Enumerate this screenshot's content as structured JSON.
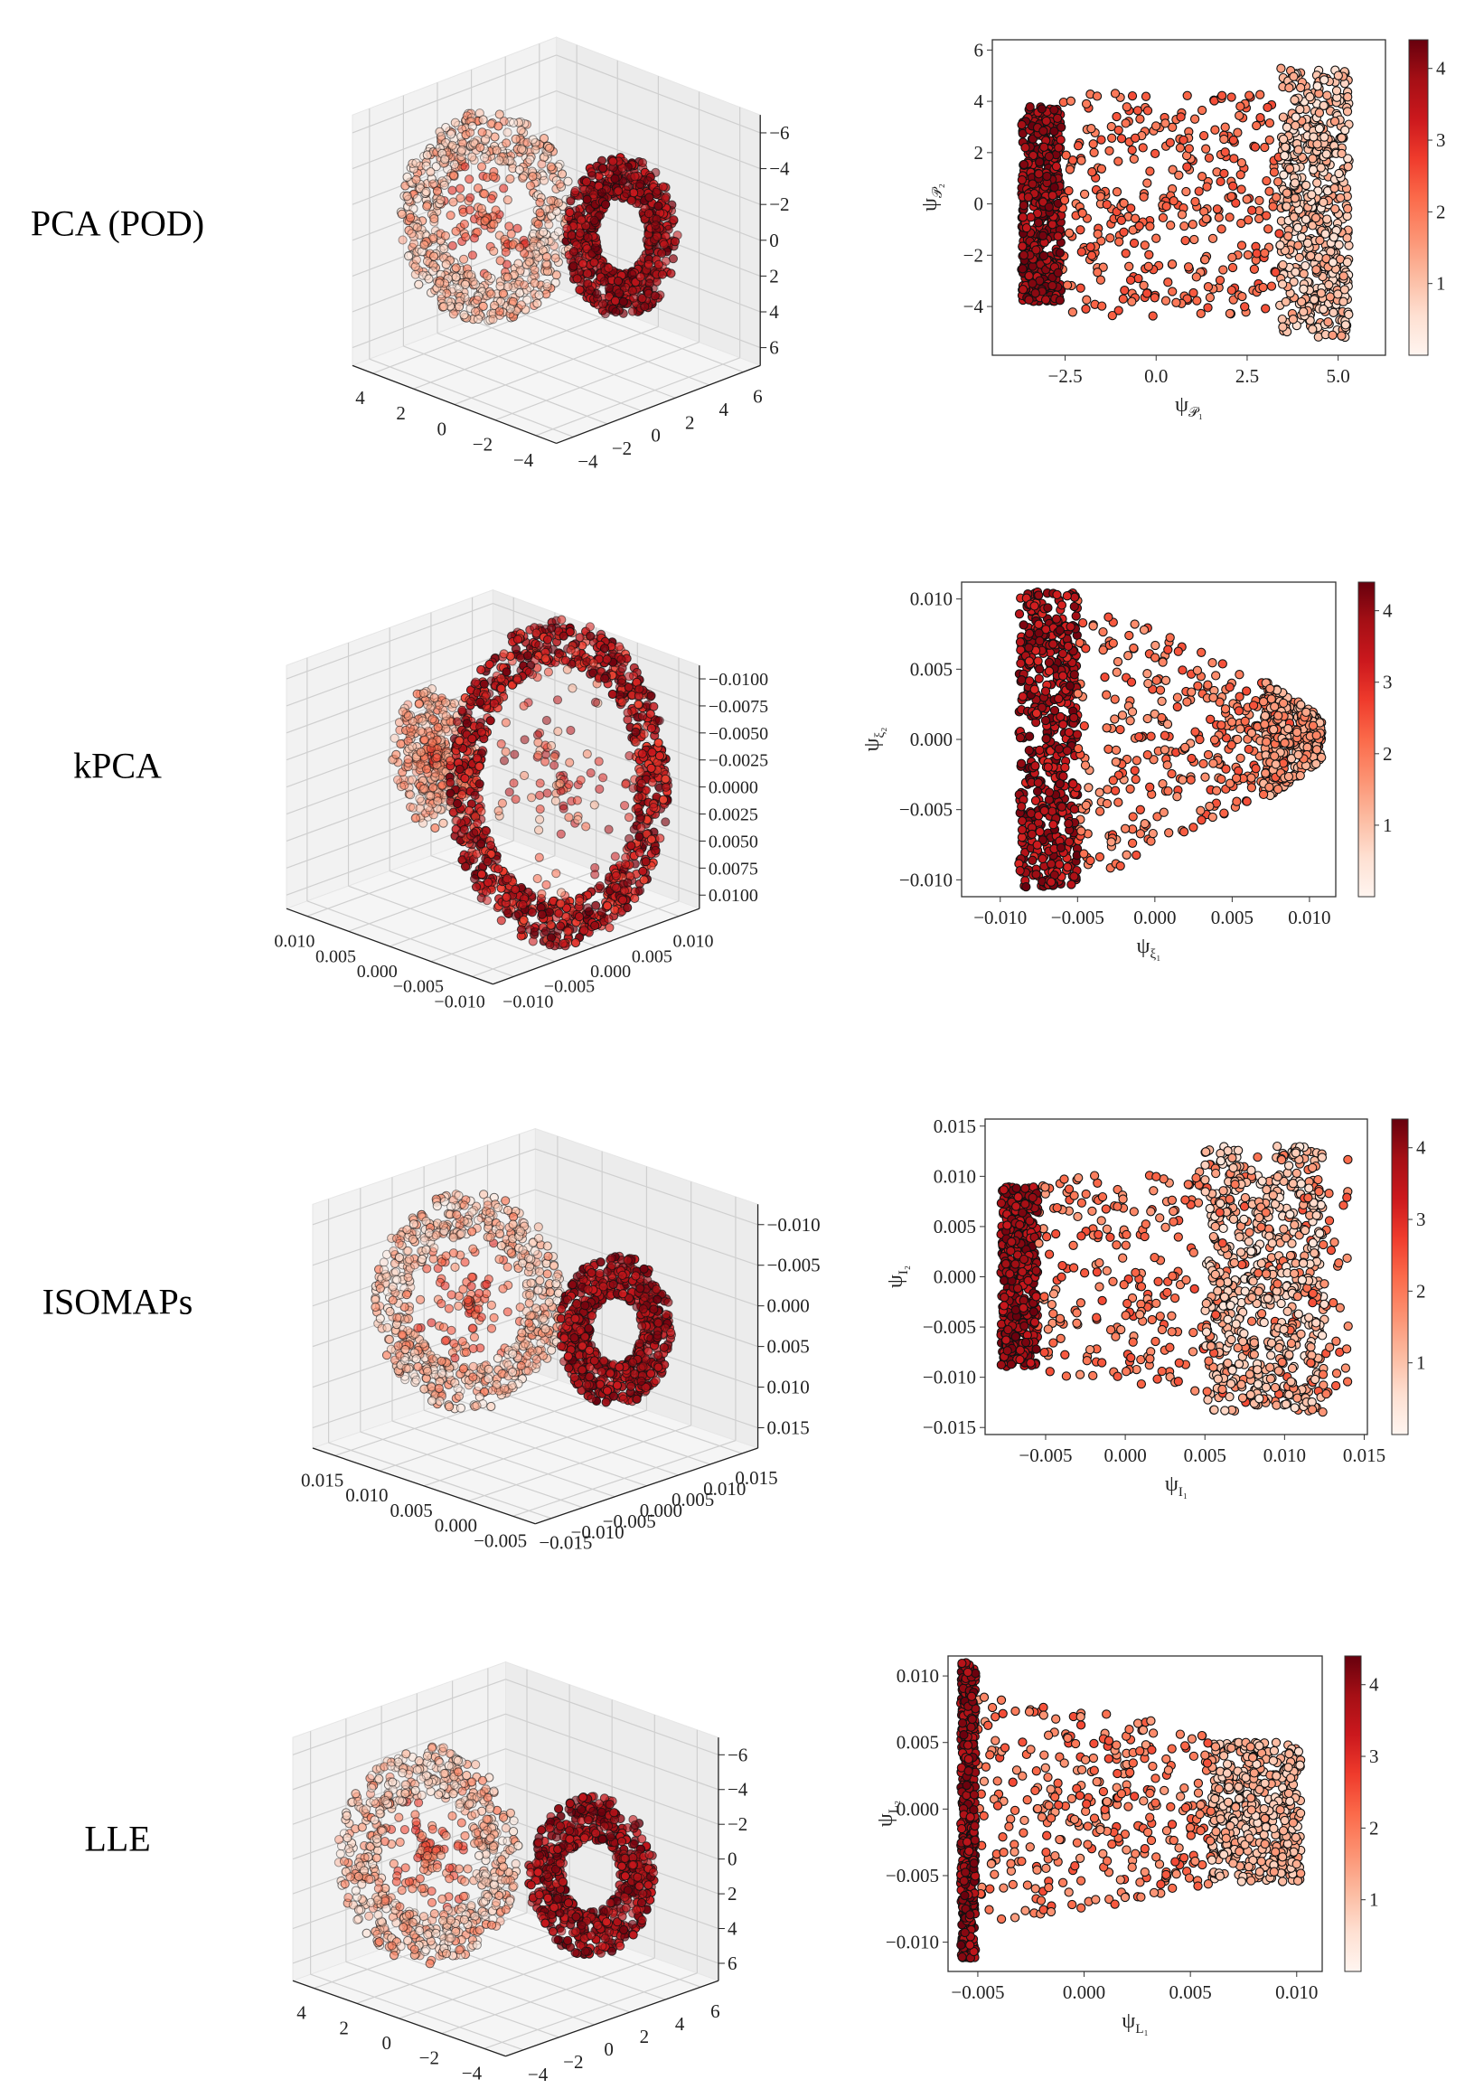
{
  "rows": [
    {
      "label": "PCA (POD)"
    },
    {
      "label": "kPCA"
    },
    {
      "label": "ISOMAPs"
    },
    {
      "label": "LLE"
    }
  ],
  "colormap": {
    "name": "Reds",
    "stops": [
      "#fff5f0",
      "#fee0d2",
      "#fcbba1",
      "#fc9272",
      "#fb6a4a",
      "#ef3b2c",
      "#cb181d",
      "#a50f15",
      "#67000d"
    ]
  },
  "chart_data": [
    {
      "type": "scatter3d",
      "method": "PCA (POD)",
      "zticks": [
        "−6",
        "−4",
        "−2",
        "0",
        "2",
        "4",
        "6"
      ],
      "left_ticks": [
        "4",
        "2",
        "0",
        "−2",
        "−4"
      ],
      "right_ticks": [
        "−4",
        "−2",
        "0",
        "2",
        "4",
        "6"
      ],
      "description_colors": "light ring (low values) and dark ring (high values)"
    },
    {
      "type": "scatter",
      "method": "PCA (POD)",
      "xlabel": {
        "base": "ψ",
        "sub": "𝒫₁"
      },
      "ylabel": {
        "base": "ψ",
        "sub": "𝒫₂"
      },
      "xlim": [
        -4.5,
        6.3
      ],
      "ylim": [
        -5.9,
        6.4
      ],
      "xticks": [
        "−2.5",
        "0.0",
        "2.5",
        "5.0"
      ],
      "yticks": [
        "−4",
        "−2",
        "0",
        "2",
        "4",
        "6"
      ],
      "clim": [
        0,
        4.4
      ],
      "cticks": [
        "1",
        "2",
        "3",
        "4"
      ],
      "clusters": [
        {
          "x": [
            -3.7,
            -2.6
          ],
          "y": [
            -3.8,
            3.8
          ],
          "n": 500,
          "c": [
            3.4,
            4.4
          ]
        },
        {
          "x": [
            -2.6,
            3.4
          ],
          "y": [
            -4.4,
            4.4
          ],
          "n": 350,
          "c": [
            1.8,
            2.6
          ]
        },
        {
          "x": [
            3.4,
            5.3
          ],
          "y": [
            -5.2,
            5.3
          ],
          "n": 550,
          "c": [
            0.4,
            1.6
          ]
        }
      ]
    },
    {
      "type": "scatter3d",
      "method": "kPCA",
      "zticks": [
        "−0.0100",
        "−0.0075",
        "−0.0050",
        "−0.0025",
        "0.0000",
        "0.0025",
        "0.0050",
        "0.0075",
        "0.0100"
      ],
      "left_ticks": [
        "0.010",
        "0.005",
        "0.000",
        "−0.005",
        "−0.010"
      ],
      "right_ticks": [
        "−0.010",
        "−0.005",
        "0.000",
        "0.005",
        "0.010"
      ]
    },
    {
      "type": "scatter",
      "method": "kPCA",
      "xlabel": {
        "base": "ψ",
        "sub": "ξ₁"
      },
      "ylabel": {
        "base": "ψ",
        "sub": "ξ₂"
      },
      "xlim": [
        -0.0125,
        0.0117
      ],
      "ylim": [
        -0.0112,
        0.0112
      ],
      "xticks": [
        "−0.010",
        "−0.005",
        "0.000",
        "0.005",
        "0.010"
      ],
      "yticks": [
        "−0.010",
        "−0.005",
        "0.000",
        "0.005",
        "0.010"
      ],
      "clim": [
        0,
        4.4
      ],
      "cticks": [
        "1",
        "2",
        "3",
        "4"
      ],
      "clusters": [
        {
          "x": [
            -0.0088,
            -0.005
          ],
          "y": [
            -0.0105,
            0.0105
          ],
          "n": 550,
          "c": [
            3.0,
            4.4
          ]
        },
        {
          "x": [
            -0.005,
            0.009
          ],
          "y": [
            -0.0105,
            0.0105
          ],
          "y_at_xmax": [
            -0.003,
            0.003
          ],
          "n": 350,
          "c": [
            1.5,
            2.6
          ]
        },
        {
          "x": [
            0.007,
            0.0108
          ],
          "y": [
            -0.0045,
            0.0045
          ],
          "y_at_xmax": [
            -0.0015,
            0.0015
          ],
          "n": 300,
          "c": [
            1.0,
            2.0
          ]
        }
      ]
    },
    {
      "type": "scatter3d",
      "method": "ISOMAPs",
      "zticks": [
        "−0.010",
        "−0.005",
        "0.000",
        "0.005",
        "0.010",
        "0.015"
      ],
      "left_ticks": [
        "0.015",
        "0.010",
        "0.005",
        "0.000",
        "−0.005"
      ],
      "right_ticks": [
        "−0.015",
        "−0.010",
        "−0.005",
        "0.000",
        "0.005",
        "0.010",
        "0.015"
      ]
    },
    {
      "type": "scatter",
      "method": "ISOMAPs",
      "xlabel": {
        "base": "ψ",
        "sub": "I₁"
      },
      "ylabel": {
        "base": "ψ",
        "sub": "I₂"
      },
      "xlim": [
        -0.0088,
        0.0152
      ],
      "ylim": [
        -0.0157,
        0.0157
      ],
      "xticks": [
        "−0.005",
        "0.000",
        "0.005",
        "0.010",
        "0.015"
      ],
      "yticks": [
        "−0.015",
        "−0.010",
        "−0.005",
        "0.000",
        "0.005",
        "0.010",
        "0.015"
      ],
      "clim": [
        0,
        4.4
      ],
      "cticks": [
        "1",
        "2",
        "3",
        "4"
      ],
      "clusters": [
        {
          "x": [
            -0.0078,
            -0.0055
          ],
          "y": [
            -0.009,
            0.009
          ],
          "n": 500,
          "c": [
            3.3,
            4.4
          ]
        },
        {
          "x": [
            -0.0055,
            0.014
          ],
          "y": [
            -0.0095,
            0.0095
          ],
          "y_at_xmax": [
            -0.014,
            0.013
          ],
          "n": 400,
          "c": [
            1.5,
            2.6
          ]
        },
        {
          "x": [
            0.005,
            0.0125
          ],
          "y": [
            -0.0135,
            0.013
          ],
          "n": 550,
          "c": [
            0.3,
            1.5
          ]
        }
      ]
    },
    {
      "type": "scatter3d",
      "method": "LLE",
      "zticks": [
        "−6",
        "−4",
        "−2",
        "0",
        "2",
        "4",
        "6"
      ],
      "left_ticks": [
        "4",
        "2",
        "0",
        "−2",
        "−4"
      ],
      "right_ticks": [
        "−4",
        "−2",
        "0",
        "2",
        "4",
        "6"
      ]
    },
    {
      "type": "scatter",
      "method": "LLE",
      "xlabel": {
        "base": "ψ",
        "sub": "L₁"
      },
      "ylabel": {
        "base": "ψ",
        "sub": "L₂"
      },
      "xlim": [
        -0.0064,
        0.0112
      ],
      "ylim": [
        -0.0122,
        0.0115
      ],
      "xticks": [
        "−0.005",
        "0.000",
        "0.005",
        "0.010"
      ],
      "yticks": [
        "−0.010",
        "−0.005",
        "0.000",
        "0.005",
        "0.010"
      ],
      "clim": [
        0,
        4.4
      ],
      "cticks": [
        "1",
        "2",
        "3",
        "4"
      ],
      "clusters": [
        {
          "x": [
            -0.0058,
            -0.0051
          ],
          "y": [
            -0.0112,
            0.011
          ],
          "n": 450,
          "c": [
            3.5,
            4.4
          ]
        },
        {
          "x": [
            -0.005,
            0.006
          ],
          "y": [
            -0.009,
            0.0085
          ],
          "y_at_xmax": [
            -0.006,
            0.006
          ],
          "n": 350,
          "c": [
            1.5,
            2.6
          ]
        },
        {
          "x": [
            0.006,
            0.0102
          ],
          "y": [
            -0.0055,
            0.005
          ],
          "n": 450,
          "c": [
            0.6,
            1.6
          ]
        }
      ]
    }
  ]
}
